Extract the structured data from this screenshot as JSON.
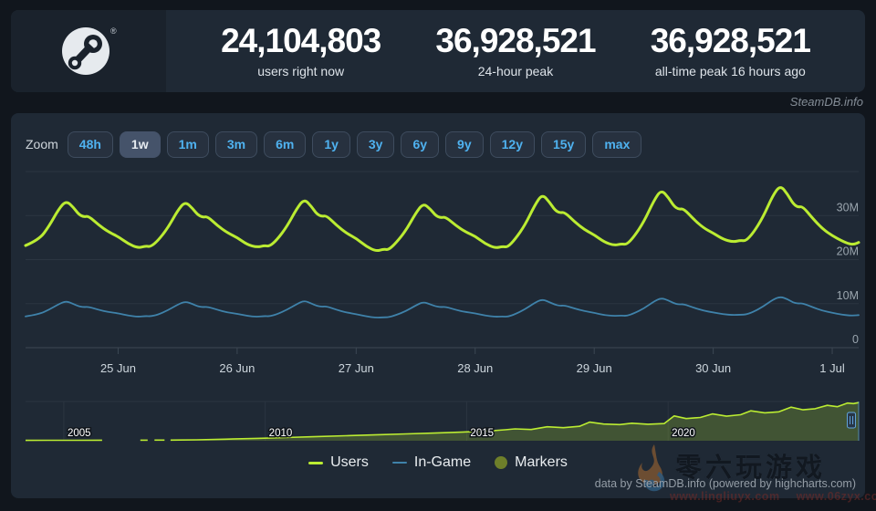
{
  "header": {
    "stats": [
      {
        "value": "24,104,803",
        "label": "users right now"
      },
      {
        "value": "36,928,521",
        "label": "24-hour peak"
      },
      {
        "value": "36,928,521",
        "label": "all-time peak 16 hours ago"
      }
    ]
  },
  "site_credit": "SteamDB.info",
  "toolbar": {
    "zoom_label": "Zoom",
    "buttons": [
      "48h",
      "1w",
      "1m",
      "3m",
      "6m",
      "1y",
      "3y",
      "6y",
      "9y",
      "12y",
      "15y",
      "max"
    ],
    "selected": "1w"
  },
  "chart_data": {
    "main": {
      "type": "line",
      "unit": "millions of concurrent users",
      "x_span_hours": 168,
      "ylim": [
        0,
        40
      ],
      "gridline_values": [
        40,
        30,
        20,
        10,
        0
      ],
      "y_ticks": [
        {
          "label": "30M",
          "value": 30
        },
        {
          "label": "20M",
          "value": 20
        },
        {
          "label": "10M",
          "value": 10
        },
        {
          "label": "0",
          "value": 0
        }
      ],
      "x_ticks": [
        {
          "label": "25 Jun",
          "t": 18.67
        },
        {
          "label": "26 Jun",
          "t": 42.67
        },
        {
          "label": "27 Jun",
          "t": 66.67
        },
        {
          "label": "28 Jun",
          "t": 90.67
        },
        {
          "label": "29 Jun",
          "t": 114.67
        },
        {
          "label": "30 Jun",
          "t": 138.67
        },
        {
          "label": "1 Jul",
          "t": 162.67
        }
      ],
      "series": [
        {
          "name": "Users",
          "color": "#bbec32",
          "width": 3
        },
        {
          "name": "In-Game",
          "color": "#3f82aa",
          "width": 1.8
        }
      ],
      "points": [
        [
          0,
          23.2,
          7.1
        ],
        [
          2.7,
          24.5,
          7.6
        ],
        [
          4.7,
          27.5,
          8.6
        ],
        [
          6.7,
          31.5,
          9.9
        ],
        [
          8.2,
          33.4,
          10.6
        ],
        [
          9.7,
          31.8,
          9.9
        ],
        [
          10.7,
          30.3,
          9.4
        ],
        [
          11.7,
          29.7,
          9.2
        ],
        [
          12.7,
          29.9,
          9.3
        ],
        [
          14.7,
          27.9,
          8.6
        ],
        [
          16.7,
          26.3,
          8.1
        ],
        [
          18.7,
          25.2,
          7.8
        ],
        [
          20.7,
          23.6,
          7.3
        ],
        [
          22.7,
          22.6,
          7.0
        ],
        [
          24.2,
          23.1,
          7.2
        ],
        [
          25.2,
          22.9,
          7.1
        ],
        [
          26.7,
          24.3,
          7.5
        ],
        [
          28.7,
          27.2,
          8.5
        ],
        [
          30.7,
          31.2,
          9.8
        ],
        [
          32.2,
          33.2,
          10.5
        ],
        [
          33.7,
          31.6,
          9.9
        ],
        [
          34.7,
          30.2,
          9.4
        ],
        [
          35.7,
          29.6,
          9.2
        ],
        [
          36.7,
          29.8,
          9.3
        ],
        [
          38.7,
          27.7,
          8.6
        ],
        [
          40.7,
          26.1,
          8.0
        ],
        [
          42.7,
          25.0,
          7.7
        ],
        [
          44.7,
          23.4,
          7.2
        ],
        [
          46.7,
          22.8,
          7.0
        ],
        [
          48.2,
          23.2,
          7.2
        ],
        [
          49.2,
          23.0,
          7.1
        ],
        [
          50.7,
          24.5,
          7.6
        ],
        [
          52.7,
          27.5,
          8.6
        ],
        [
          54.7,
          31.6,
          9.9
        ],
        [
          56.2,
          33.8,
          10.7
        ],
        [
          57.7,
          32.0,
          10.0
        ],
        [
          58.7,
          30.4,
          9.5
        ],
        [
          59.7,
          29.8,
          9.3
        ],
        [
          60.7,
          30.0,
          9.4
        ],
        [
          62.7,
          27.8,
          8.6
        ],
        [
          64.7,
          26.0,
          8.0
        ],
        [
          66.7,
          24.8,
          7.6
        ],
        [
          68.7,
          23.0,
          7.1
        ],
        [
          70.7,
          21.9,
          6.8
        ],
        [
          72.2,
          22.4,
          6.9
        ],
        [
          73.2,
          22.2,
          6.9
        ],
        [
          74.7,
          23.8,
          7.4
        ],
        [
          76.7,
          26.6,
          8.3
        ],
        [
          78.7,
          30.6,
          9.6
        ],
        [
          80.2,
          32.8,
          10.4
        ],
        [
          81.7,
          31.4,
          9.8
        ],
        [
          82.7,
          30.0,
          9.4
        ],
        [
          83.7,
          29.5,
          9.2
        ],
        [
          84.7,
          29.7,
          9.3
        ],
        [
          86.7,
          27.8,
          8.6
        ],
        [
          88.7,
          26.3,
          8.1
        ],
        [
          90.7,
          25.3,
          7.8
        ],
        [
          92.7,
          23.6,
          7.3
        ],
        [
          94.7,
          22.6,
          7.0
        ],
        [
          96.2,
          23.0,
          7.1
        ],
        [
          97.2,
          22.8,
          7.0
        ],
        [
          98.7,
          24.6,
          7.6
        ],
        [
          100.7,
          27.8,
          8.7
        ],
        [
          102.7,
          32.4,
          10.2
        ],
        [
          104.2,
          34.9,
          11.0
        ],
        [
          105.7,
          33.0,
          10.3
        ],
        [
          106.7,
          31.3,
          9.8
        ],
        [
          107.7,
          30.6,
          9.5
        ],
        [
          108.7,
          30.8,
          9.6
        ],
        [
          110.7,
          28.6,
          8.9
        ],
        [
          112.7,
          26.8,
          8.3
        ],
        [
          114.7,
          25.6,
          7.9
        ],
        [
          116.7,
          24.0,
          7.4
        ],
        [
          118.7,
          23.2,
          7.2
        ],
        [
          120.2,
          23.6,
          7.3
        ],
        [
          121.2,
          23.4,
          7.2
        ],
        [
          122.7,
          25.2,
          7.8
        ],
        [
          124.7,
          28.6,
          8.9
        ],
        [
          126.7,
          33.4,
          10.5
        ],
        [
          128.2,
          35.9,
          11.3
        ],
        [
          129.7,
          34.0,
          10.7
        ],
        [
          130.7,
          32.2,
          10.1
        ],
        [
          131.7,
          31.4,
          9.8
        ],
        [
          132.7,
          31.6,
          9.9
        ],
        [
          134.7,
          29.2,
          9.1
        ],
        [
          136.7,
          27.2,
          8.4
        ],
        [
          138.7,
          26.0,
          8.0
        ],
        [
          140.7,
          24.6,
          7.6
        ],
        [
          142.7,
          24.0,
          7.4
        ],
        [
          144.2,
          24.4,
          7.5
        ],
        [
          145.2,
          24.2,
          7.5
        ],
        [
          146.7,
          26.0,
          8.1
        ],
        [
          148.7,
          29.6,
          9.3
        ],
        [
          150.7,
          34.6,
          10.9
        ],
        [
          152.2,
          36.9,
          11.6
        ],
        [
          153.7,
          34.8,
          11.0
        ],
        [
          154.7,
          32.8,
          10.3
        ],
        [
          155.7,
          31.9,
          10.0
        ],
        [
          156.7,
          32.1,
          10.1
        ],
        [
          158.7,
          29.4,
          9.2
        ],
        [
          160.7,
          27.0,
          8.4
        ],
        [
          162.7,
          25.4,
          7.9
        ],
        [
          164.7,
          24.2,
          7.5
        ],
        [
          166.2,
          23.5,
          7.3
        ],
        [
          167.2,
          23.5,
          7.3
        ],
        [
          168,
          23.9,
          7.4
        ]
      ]
    },
    "navigator": {
      "type": "area",
      "range_years": [
        2004.05,
        2024.73
      ],
      "ymax": 38,
      "year_ticks": [
        {
          "label": "2005",
          "year": 2005
        },
        {
          "label": "2010",
          "year": 2010
        },
        {
          "label": "2015",
          "year": 2015
        },
        {
          "label": "2020",
          "year": 2020
        }
      ],
      "line_color": "#bbec32",
      "fill_color": "rgba(187,236,50,0.22)",
      "handle_year": 2024.55,
      "points": [
        [
          2004.05,
          0.35
        ],
        [
          2004.6,
          0.4
        ],
        [
          2005.3,
          0.45
        ],
        [
          2005.95,
          0.5
        ],
        null,
        [
          2006.9,
          0.55
        ],
        [
          2007.08,
          0.55
        ],
        null,
        [
          2007.25,
          0.6
        ],
        [
          2007.5,
          0.6
        ],
        null,
        [
          2007.65,
          0.65
        ],
        [
          2007.9,
          0.7
        ],
        [
          2008.3,
          0.9
        ],
        [
          2009.0,
          1.5
        ],
        [
          2009.8,
          2.3
        ],
        [
          2010.5,
          3.1
        ],
        [
          2011.2,
          3.9
        ],
        [
          2012.0,
          4.9
        ],
        [
          2012.8,
          5.8
        ],
        [
          2013.5,
          6.6
        ],
        [
          2014.2,
          7.4
        ],
        [
          2015.0,
          8.6
        ],
        [
          2015.5,
          9.4
        ],
        [
          2015.95,
          10.6
        ],
        [
          2016.2,
          11.5
        ],
        [
          2016.6,
          10.9
        ],
        [
          2017.0,
          13.5
        ],
        [
          2017.4,
          12.6
        ],
        [
          2017.8,
          14.0
        ],
        [
          2018.05,
          18.0
        ],
        [
          2018.4,
          16.2
        ],
        [
          2018.8,
          15.6
        ],
        [
          2019.1,
          17.0
        ],
        [
          2019.5,
          16.0
        ],
        [
          2019.9,
          16.6
        ],
        [
          2020.15,
          24.0
        ],
        [
          2020.45,
          21.5
        ],
        [
          2020.8,
          22.5
        ],
        [
          2021.1,
          26.0
        ],
        [
          2021.45,
          23.8
        ],
        [
          2021.8,
          25.2
        ],
        [
          2022.05,
          29.0
        ],
        [
          2022.4,
          27.0
        ],
        [
          2022.75,
          28.0
        ],
        [
          2023.05,
          32.5
        ],
        [
          2023.35,
          30.0
        ],
        [
          2023.65,
          31.0
        ],
        [
          2023.95,
          34.3
        ],
        [
          2024.2,
          33.0
        ],
        [
          2024.45,
          36.5
        ],
        [
          2024.6,
          36.0
        ],
        [
          2024.73,
          36.9
        ]
      ]
    }
  },
  "legend": [
    {
      "label": "Users",
      "color": "#bbec32",
      "marker": "line"
    },
    {
      "label": "In-Game",
      "color": "#3f82aa",
      "marker": "line"
    },
    {
      "label": "Markers",
      "color": "#6e7f2a",
      "marker": "circle"
    }
  ],
  "footer": {
    "credit": "data by SteamDB.info (powered by highcharts.com)"
  },
  "watermark": {
    "text": "零六玩游戏",
    "url_left": "www.lingliuyx.com",
    "url_right": "www.06zyx.com"
  }
}
